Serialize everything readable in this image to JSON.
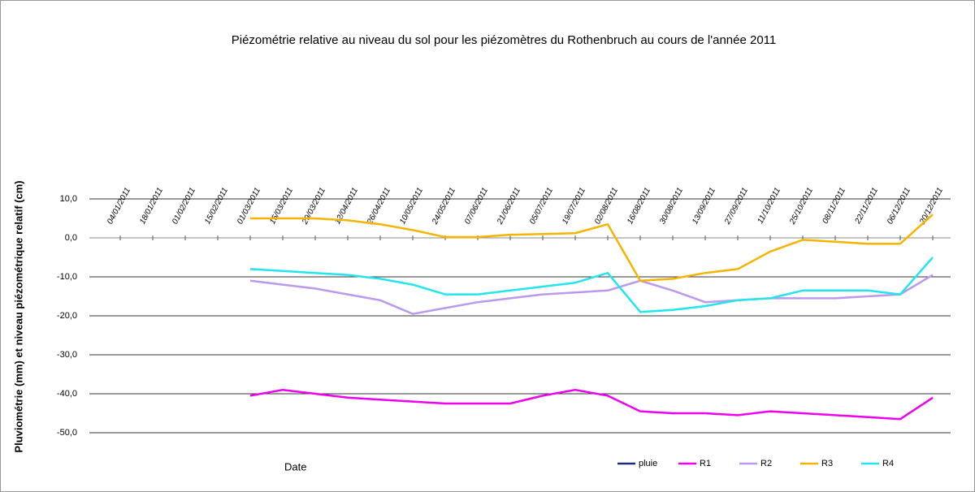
{
  "chart_data": {
    "type": "line",
    "title": "Piézométrie relative au niveau du sol pour les piézomètres du Rothenbruch au cours de l'année 2011",
    "x_label": "Date",
    "y_label": "Pluviométrie (mm) et niveau piézométrique relatif (cm)",
    "categories": [
      "04/01/2011",
      "18/01/2011",
      "01/02/2011",
      "15/02/2011",
      "01/03/2011",
      "15/03/2011",
      "29/03/2011",
      "12/04/2011",
      "26/04/2011",
      "10/05/2011",
      "24/05/2011",
      "07/06/2011",
      "21/06/2011",
      "05/07/2011",
      "19/07/2011",
      "02/08/2011",
      "16/08/2011",
      "30/08/2011",
      "13/09/2011",
      "27/09/2011",
      "11/10/2011",
      "25/10/2011",
      "08/11/2011",
      "22/11/2011",
      "06/12/2011",
      "20/12/2011"
    ],
    "series": [
      {
        "name": "pluie",
        "color": "#1f2a7a",
        "values": [
          null,
          null,
          null,
          null,
          null,
          null,
          null,
          null,
          null,
          null,
          null,
          null,
          null,
          null,
          null,
          null,
          null,
          null,
          null,
          null,
          null,
          null,
          null,
          null,
          null,
          null
        ]
      },
      {
        "name": "R1",
        "color": "#ee00ee",
        "values": [
          null,
          null,
          null,
          null,
          -40.5,
          -39,
          -40,
          -41,
          -41.5,
          -42,
          -42.5,
          -42.5,
          -42.5,
          -40.5,
          -39,
          -40.5,
          -44.5,
          -45,
          -45,
          -45.5,
          -44.5,
          -45,
          -45.5,
          -46,
          -46.5,
          -41
        ]
      },
      {
        "name": "R2",
        "color": "#bb99ee",
        "values": [
          null,
          null,
          null,
          null,
          -11,
          -12,
          -13,
          -14.5,
          -16,
          -19.5,
          -18,
          -16.5,
          -15.5,
          -14.5,
          -14,
          -13.5,
          -11,
          -13.5,
          -16.5,
          -16,
          -15.5,
          -15.5,
          -15.5,
          -15,
          -14.5,
          -9.5
        ]
      },
      {
        "name": "R3",
        "color": "#f5b400",
        "values": [
          null,
          null,
          null,
          null,
          5,
          5,
          5,
          4.5,
          3.5,
          2,
          0.2,
          0.2,
          0.8,
          1,
          1.2,
          3.5,
          -11,
          -10.5,
          -9,
          -8,
          -3.5,
          -0.5,
          -1,
          -1.5,
          -1.5,
          6
        ]
      },
      {
        "name": "R4",
        "color": "#22e5ee",
        "values": [
          null,
          null,
          null,
          null,
          -8,
          -8.5,
          -9,
          -9.5,
          -10.5,
          -12,
          -14.5,
          -14.5,
          -13.5,
          -12.5,
          -11.5,
          -9,
          -19,
          -18.5,
          -17.5,
          -16,
          -15.5,
          -13.5,
          -13.5,
          -13.5,
          -14.5,
          -5
        ]
      }
    ],
    "ylim": [
      -50,
      10
    ],
    "yticks": [
      {
        "value": 10,
        "label": "10,0"
      },
      {
        "value": 0,
        "label": "0,0"
      },
      {
        "value": -10,
        "label": "-10,0"
      },
      {
        "value": -20,
        "label": "-20,0"
      },
      {
        "value": -30,
        "label": "-30,0"
      },
      {
        "value": -40,
        "label": "-40,0"
      },
      {
        "value": -50,
        "label": "-50,0"
      }
    ],
    "grid": true,
    "legend": "bottom-right"
  }
}
